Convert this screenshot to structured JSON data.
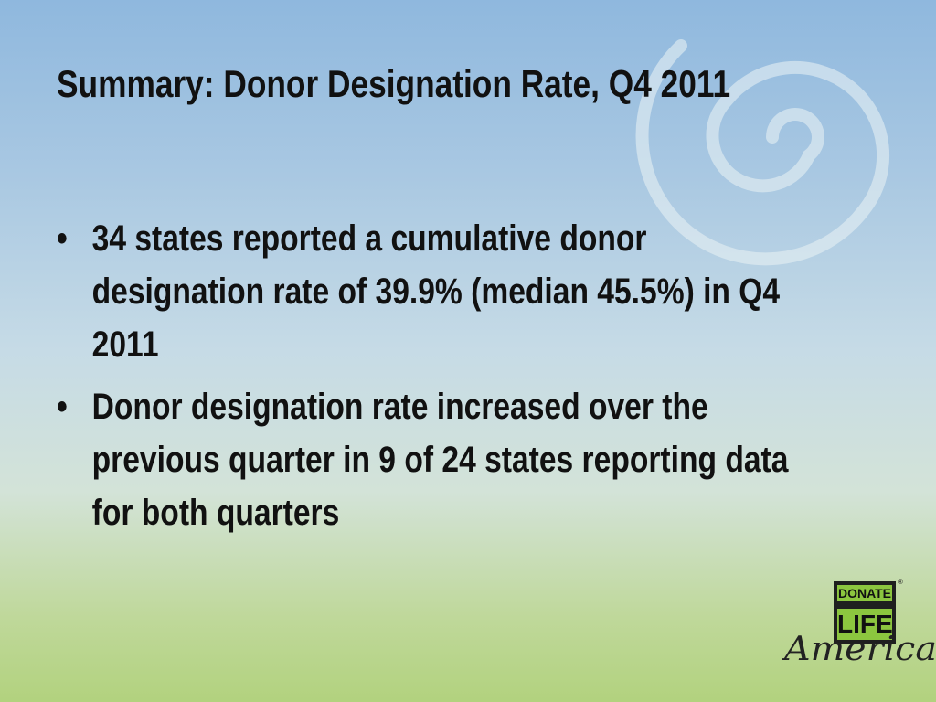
{
  "slide": {
    "title": "Summary: Donor Designation Rate, Q4 2011",
    "bullets": [
      "34 states reported a cumulative donor designation rate of 39.9% (median 45.5%) in Q4 2011",
      "Donor designation rate increased over the previous quarter in 9 of 24 states reporting data for both quarters"
    ],
    "logo": {
      "top": "DONATE",
      "middle": "LIFE",
      "script": "America",
      "mark": "®"
    }
  }
}
